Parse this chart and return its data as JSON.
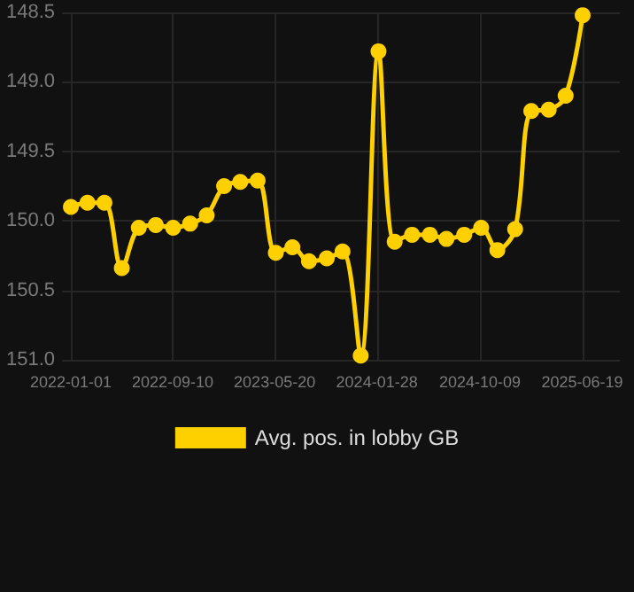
{
  "chart_data": {
    "type": "line",
    "x": [
      "2022-01-01",
      "2022-02-11",
      "2022-03-25",
      "2022-05-07",
      "2022-06-18",
      "2022-07-30",
      "2022-09-11",
      "2022-10-23",
      "2022-12-03",
      "2023-01-15",
      "2023-02-24",
      "2023-04-08",
      "2023-05-23",
      "2023-07-03",
      "2023-08-13",
      "2023-09-26",
      "2023-11-04",
      "2023-12-19",
      "2024-02-01",
      "2024-03-12",
      "2024-04-24",
      "2024-06-07",
      "2024-07-18",
      "2024-08-31",
      "2024-10-12",
      "2024-11-21",
      "2025-01-04",
      "2025-02-13",
      "2025-03-28",
      "2025-05-09",
      "2025-06-20"
    ],
    "series": [
      {
        "name": "Avg. pos. in lobby GB",
        "color": "#ffd000",
        "values": [
          149.9,
          149.87,
          149.87,
          150.34,
          150.05,
          150.03,
          150.05,
          150.02,
          149.96,
          149.75,
          149.72,
          149.71,
          150.23,
          150.19,
          150.29,
          150.27,
          150.22,
          150.97,
          148.78,
          150.15,
          150.1,
          150.1,
          150.13,
          150.1,
          150.05,
          150.21,
          150.06,
          149.21,
          149.2,
          149.1,
          148.52
        ]
      }
    ],
    "xlim": [
      "2021-12-10",
      "2025-09-20"
    ],
    "xticks": [
      "2022-01-01",
      "2022-09-10",
      "2023-05-20",
      "2024-01-28",
      "2024-10-09",
      "2025-06-19"
    ],
    "ylim": [
      151.0,
      148.5
    ],
    "yticks": [
      {
        "value": 148.5,
        "label": "148.5"
      },
      {
        "value": 149,
        "label": "149.0"
      },
      {
        "value": 149.5,
        "label": "149.5"
      },
      {
        "value": 150,
        "label": "150.0"
      },
      {
        "value": 150.5,
        "label": "150.5"
      },
      {
        "value": 151,
        "label": "151.0"
      }
    ],
    "grid": true,
    "legend": "bottom",
    "marker": "circle",
    "line_style": "solid"
  }
}
